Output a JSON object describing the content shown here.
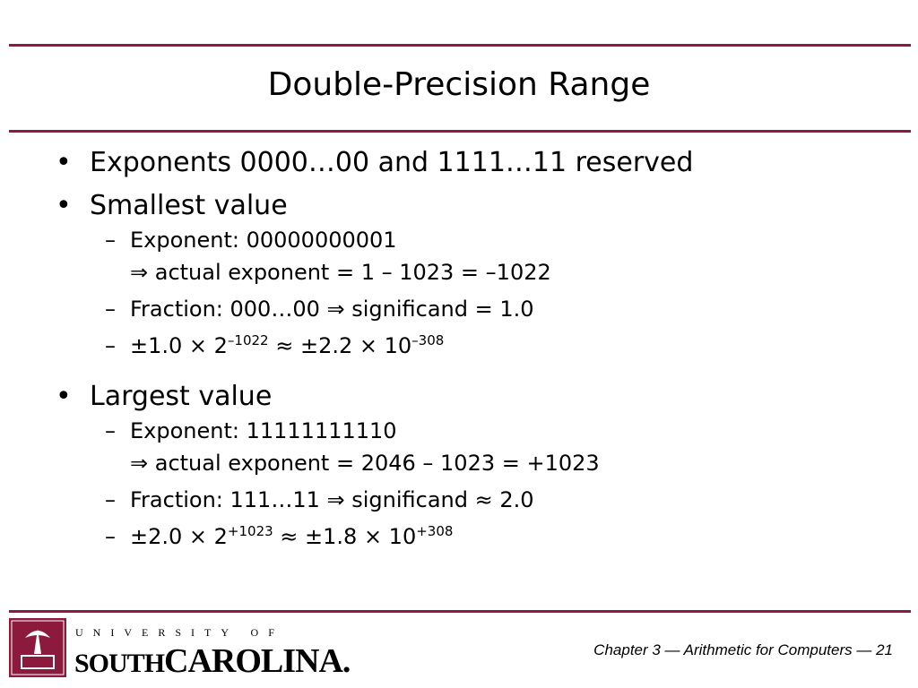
{
  "title": "Double-Precision Range",
  "bullets": [
    {
      "text": "Exponents 0000…00 and 1111…11 reserved",
      "sub": []
    },
    {
      "text": "Smallest value",
      "sub": [
        {
          "lines": [
            [
              "Exponent: 00000000001"
            ],
            [
              "⇒ actual exponent = 1 – 1023 = –1022"
            ]
          ]
        },
        {
          "lines": [
            [
              "Fraction: 000…00 ⇒ significand = 1.0"
            ]
          ]
        },
        {
          "lines": [
            [
              "±1.0 × 2",
              {
                "sup": "–1022"
              },
              " ≈ ±2.2 × 10",
              {
                "sup": "–308"
              }
            ]
          ]
        }
      ]
    },
    {
      "text": "Largest value",
      "sub": [
        {
          "lines": [
            [
              "Exponent: 11111111110"
            ],
            [
              "⇒ actual exponent = 2046 – 1023 = +1023"
            ]
          ]
        },
        {
          "lines": [
            [
              "Fraction: 111…11 ⇒ significand ≈ 2.0"
            ]
          ]
        },
        {
          "lines": [
            [
              "±2.0 × 2",
              {
                "sup": "+1023"
              },
              " ≈ ±1.8 × 10",
              {
                "sup": "+308"
              }
            ]
          ]
        }
      ]
    }
  ],
  "footer": {
    "logo_top": "UNIVERSITY OF",
    "logo_south": "SOUTH",
    "logo_carolina": "CAROLINA.",
    "caption": "Chapter 3 — Arithmetic for Computers — 21"
  }
}
